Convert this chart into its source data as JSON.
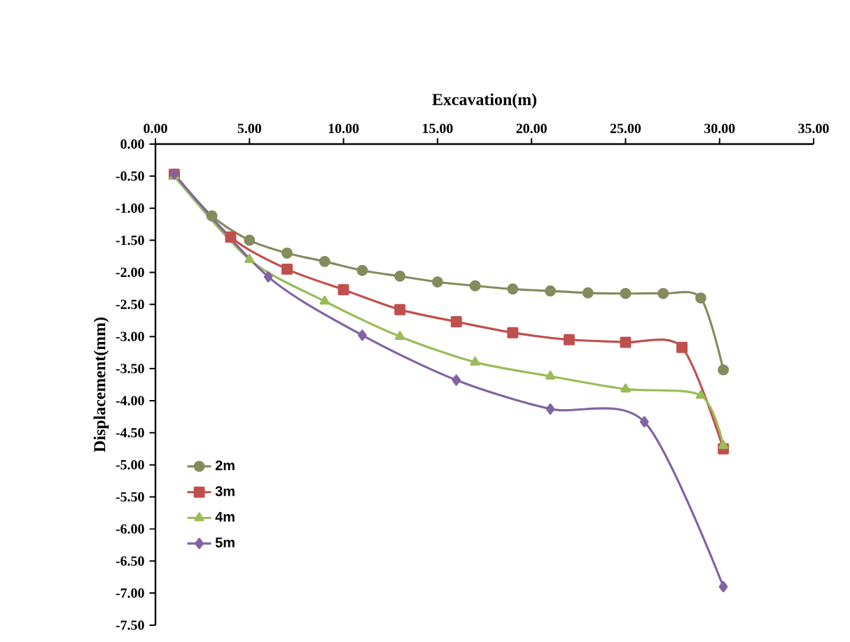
{
  "chart_data": {
    "type": "line",
    "xlabel": "Excavation(m)",
    "ylabel": "Displacement(mm)",
    "xlim": [
      0,
      35
    ],
    "ylim": [
      -7.5,
      0
    ],
    "xticks": [
      {
        "value": 0,
        "label": "0.00"
      },
      {
        "value": 5,
        "label": "5.00"
      },
      {
        "value": 10,
        "label": "10.00"
      },
      {
        "value": 15,
        "label": "15.00"
      },
      {
        "value": 20,
        "label": "20.00"
      },
      {
        "value": 25,
        "label": "25.00"
      },
      {
        "value": 30,
        "label": "30.00"
      },
      {
        "value": 35,
        "label": "35.00"
      }
    ],
    "yticks": [
      {
        "value": 0,
        "label": "0.00"
      },
      {
        "value": -0.5,
        "label": "-0.50"
      },
      {
        "value": -1,
        "label": "-1.00"
      },
      {
        "value": -1.5,
        "label": "-1.50"
      },
      {
        "value": -2,
        "label": "-2.00"
      },
      {
        "value": -2.5,
        "label": "-2.50"
      },
      {
        "value": -3,
        "label": "-3.00"
      },
      {
        "value": -3.5,
        "label": "-3.50"
      },
      {
        "value": -4,
        "label": "-4.00"
      },
      {
        "value": -4.5,
        "label": "-4.50"
      },
      {
        "value": -5,
        "label": "-5.00"
      },
      {
        "value": -5.5,
        "label": "-5.50"
      },
      {
        "value": -6,
        "label": "-6.00"
      },
      {
        "value": -6.5,
        "label": "-6.50"
      },
      {
        "value": -7,
        "label": "-7.00"
      },
      {
        "value": -7.5,
        "label": "-7.50"
      }
    ],
    "grid": false,
    "legend": "left",
    "line_style": "solid",
    "series": [
      {
        "name": "2m",
        "color": "#868b5e",
        "marker": "circle",
        "x": [
          1,
          3,
          5,
          7,
          9,
          11,
          13,
          15,
          17,
          19,
          21,
          23,
          25,
          27,
          29,
          30.2
        ],
        "values": [
          -0.47,
          -1.12,
          -1.5,
          -1.7,
          -1.83,
          -1.97,
          -2.06,
          -2.15,
          -2.21,
          -2.26,
          -2.29,
          -2.32,
          -2.33,
          -2.33,
          -2.4,
          -3.52
        ]
      },
      {
        "name": "3m",
        "color": "#c0504d",
        "marker": "square",
        "x": [
          1,
          4,
          7,
          10,
          13,
          16,
          19,
          22,
          25,
          28,
          30.2
        ],
        "values": [
          -0.47,
          -1.45,
          -1.95,
          -2.27,
          -2.58,
          -2.77,
          -2.94,
          -3.05,
          -3.09,
          -3.17,
          -4.75
        ]
      },
      {
        "name": "4m",
        "color": "#9bbb59",
        "marker": "triangle",
        "x": [
          1,
          5,
          9,
          13,
          17,
          21,
          25,
          29,
          30.2
        ],
        "values": [
          -0.5,
          -1.8,
          -2.45,
          -3.0,
          -3.4,
          -3.62,
          -3.82,
          -3.92,
          -4.7
        ]
      },
      {
        "name": "5m",
        "color": "#8064a2",
        "marker": "diamond",
        "x": [
          1,
          6,
          11,
          16,
          21,
          26,
          30.2
        ],
        "values": [
          -0.47,
          -2.07,
          -2.98,
          -3.68,
          -4.13,
          -4.33,
          -6.9
        ]
      }
    ]
  }
}
